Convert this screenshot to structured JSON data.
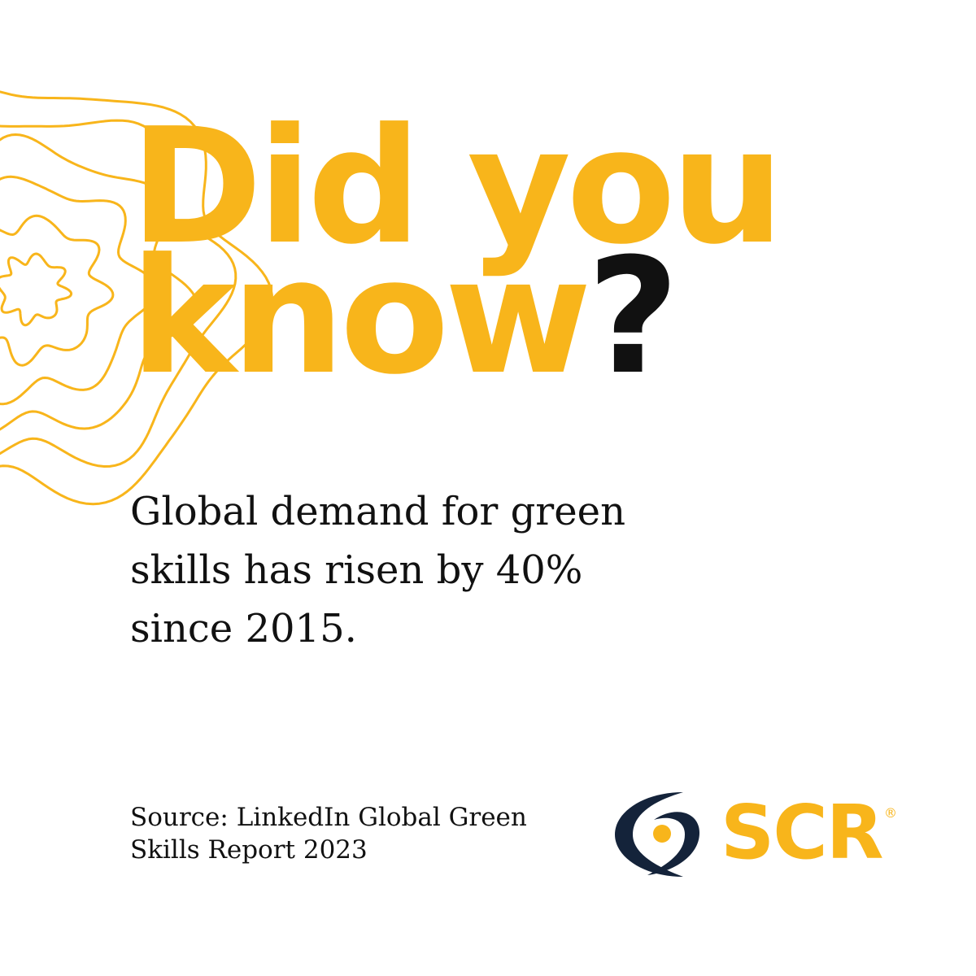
{
  "colors": {
    "accent": "#f8b51b",
    "text": "#111111",
    "logo_dark": "#14233a",
    "background": "#ffffff"
  },
  "headline": {
    "line1": "Did you",
    "line2_word": "know",
    "line2_mark": "?"
  },
  "fact": "Global demand for green skills has risen by 40% since 2015.",
  "source": {
    "line1": "Source: LinkedIn Global Green",
    "line2": "Skills Report 2023"
  },
  "logo": {
    "text": "SCR",
    "registered": "®",
    "icon": "eye-swoosh-icon"
  },
  "decoration": {
    "icon": "concentric-wave-rings"
  }
}
